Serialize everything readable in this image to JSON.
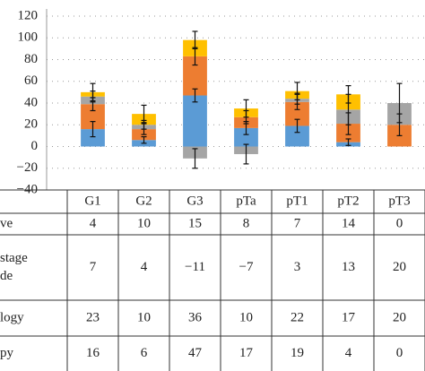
{
  "chart_data": {
    "type": "stacked-bar",
    "categories": [
      "G1",
      "G2",
      "G3",
      "pTa",
      "pT1",
      "pT2",
      "pT3"
    ],
    "series": [
      {
        "color": "#5b9bd5",
        "values": [
          16,
          6,
          47,
          17,
          19,
          4,
          0
        ],
        "errors": [
          7,
          3,
          6,
          6,
          6,
          3,
          null
        ]
      },
      {
        "color": "#ed7d31",
        "values": [
          23,
          10,
          36,
          10,
          22,
          17,
          20
        ],
        "errors": [
          6,
          5,
          8,
          6,
          7,
          10,
          10
        ]
      },
      {
        "color": "#a5a5a5",
        "values": [
          7,
          4,
          -11,
          -7,
          3,
          13,
          20
        ],
        "errors": [
          5,
          4,
          9,
          9,
          5,
          14,
          18
        ]
      },
      {
        "color": "#ffc000",
        "values": [
          4,
          10,
          15,
          8,
          7,
          14,
          0
        ],
        "errors": [
          8,
          8,
          8,
          8,
          8,
          8,
          null
        ]
      }
    ],
    "ylim": [
      -40,
      120
    ],
    "yticks": [
      {
        "value": -40,
        "label": "−40"
      },
      {
        "value": -20,
        "label": "−20"
      },
      0,
      20,
      40,
      60,
      80,
      100,
      120
    ],
    "grid": true
  },
  "table": {
    "rows": [
      {
        "label": [
          "ve"
        ],
        "cells": [
          "4",
          "10",
          "15",
          "8",
          "7",
          "14",
          "0"
        ]
      },
      {
        "label": [
          "stage",
          "de"
        ],
        "cells": [
          "7",
          "4",
          "−11",
          "−7",
          "3",
          "13",
          "20"
        ]
      },
      {
        "label": [
          "logy"
        ],
        "cells": [
          "23",
          "10",
          "36",
          "10",
          "22",
          "17",
          "20"
        ]
      },
      {
        "label": [
          "py"
        ],
        "cells": [
          "16",
          "6",
          "47",
          "17",
          "19",
          "4",
          "0"
        ]
      }
    ]
  }
}
